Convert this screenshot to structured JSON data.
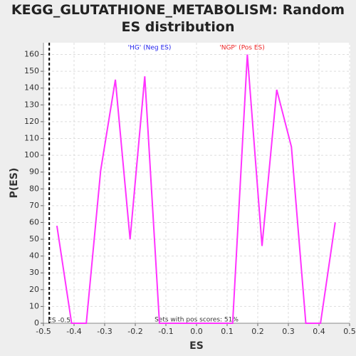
{
  "chart_data": {
    "type": "line",
    "title": "KEGG_GLUTATHIONE_METABOLISM: Random ES distribution",
    "xlabel": "ES",
    "ylabel": "P(ES)",
    "x": [
      -0.456,
      -0.408,
      -0.36,
      -0.313,
      -0.265,
      -0.217,
      -0.169,
      -0.121,
      -0.073,
      -0.025,
      0.022,
      0.07,
      0.118,
      0.166,
      0.214,
      0.262,
      0.31,
      0.357,
      0.405,
      0.453
    ],
    "series": [
      {
        "color": "#ff33ff",
        "values": [
          58,
          0,
          0,
          91,
          145,
          50,
          147,
          0,
          0,
          0,
          0,
          0,
          0,
          160,
          46,
          139,
          105,
          0,
          0,
          60
        ]
      }
    ],
    "xlim": [
      -0.5,
      0.5
    ],
    "xticks": [
      -0.5,
      -0.4,
      -0.3,
      -0.2,
      -0.1,
      {
        "value": 0,
        "label": "0.0"
      },
      0.1,
      0.2,
      0.3,
      0.4,
      0.5
    ],
    "ylim": [
      0,
      167
    ],
    "yticks": [
      0,
      10,
      20,
      30,
      40,
      50,
      60,
      70,
      80,
      90,
      100,
      110,
      120,
      130,
      140,
      150,
      160
    ],
    "grid": true,
    "observed_es": -0.481,
    "observed_label": "ES -0.5",
    "neg_label": {
      "text": "'HG' (Neg ES)",
      "color": "#2222ee"
    },
    "pos_label": {
      "text": "'NGP' (Pos ES)",
      "color": "#ee2222"
    },
    "footnote": "Sets with pos scores: 51%"
  }
}
